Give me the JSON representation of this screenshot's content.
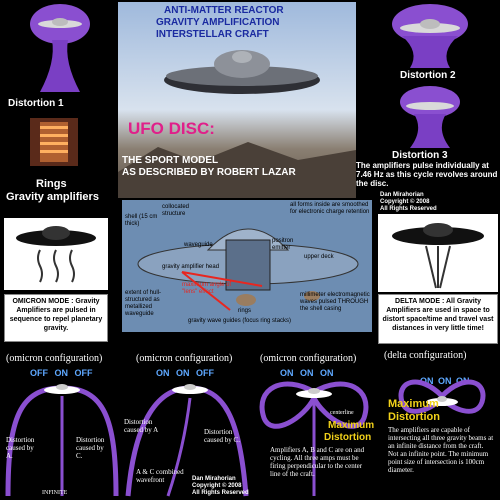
{
  "header": {
    "title_line1": "ANTI-MATTER REACTOR",
    "title_line2": "GRAVITY AMPLIFICATION",
    "title_line3": "INTERSTELLAR CRAFT",
    "ufo_title": "UFO DISC:",
    "sport_line1": "THE SPORT MODEL",
    "sport_line2": "AS DESCRIBED BY ROBERT LAZAR"
  },
  "distortions": {
    "d1": "Distortion 1",
    "d2": "Distortion 2",
    "d3": "Distortion 3",
    "d3_desc": "The amplifiers pulse individually at 7.46 Hz as this cycle revolves around the disc."
  },
  "credit": {
    "line1": "Dan Mirahorian",
    "line2": "Copyright © 2008",
    "line3": "All Rights Reserved"
  },
  "rings": {
    "title_line1": "Rings",
    "title_line2": "Gravity amplifiers"
  },
  "modes": {
    "omicron": "OMICRON MODE : Gravity Amplifiers are pulsed in sequence to repel planetary gravity.",
    "delta": "DELTA MODE : All Gravity Amplifiers are used in space to distort space/time and travel vast distances in very little time!"
  },
  "cutaway": {
    "shell": "shell (15 cm thick)",
    "collocated": "collocated structure",
    "all_forms": "all forms inside are smoothed for electronic charge retention",
    "waveguide": "waveguide",
    "positron": "positron emitter",
    "upper_deck": "upper deck",
    "gravity_head": "gravity amplifier head",
    "max_angle": "maximum angle of \"lens\" effect",
    "rings_label": "rings",
    "extent": "extent of hull-structured as metallized waveguide",
    "guides": "gravity wave guides (focus ring stacks)",
    "millimeter": "millimeter electromagnetic waves pulsed THROUGH the shell casing"
  },
  "configs": {
    "c1_label": "(omicron configuration)",
    "c2_label": "(omicron configuration)",
    "c3_label": "(omicron configuration)",
    "c4_label": "(delta configuration)",
    "c1_off1": "OFF",
    "c1_on": "ON",
    "c1_off2": "OFF",
    "c2_on1": "ON",
    "c2_on2": "ON",
    "c2_off": "OFF",
    "c3_on1": "ON",
    "c3_on2": "ON",
    "c3_on3": "ON",
    "c4_on1": "ON",
    "c4_on2": "ON",
    "c4_on3": "ON",
    "c1_left": "Distortion caused by A.",
    "c1_right": "Distortion caused by C.",
    "c1_infinite": "INFINITE",
    "c2_top": "Distortion caused by A",
    "c2_right": "Distortion caused by C.",
    "c2_combined": "A & C combined wavefront",
    "c3_centerline": "centerline",
    "c3_max1": "Maximum",
    "c3_max2": "Distortion",
    "c3_text": "Amplifiers A, B and C are on and cycling. All three amps must be firing perpendicular to the center line of the craft.",
    "c4_max1": "Maximum",
    "c4_max2": "Distortion",
    "c4_text": "The amplifiers are capable of intersecting all three gravity beams at an infinite distance from the craft. Not an infinite point. The minimum point size of intersection is 100cm diameter."
  },
  "colors": {
    "purple": "#8a4fd0",
    "sky": "#b9cde6",
    "cutaway_bg": "#6d8db2",
    "red": "#e8261f",
    "yellow": "#f2d21a",
    "ontext": "#5ea8ff"
  }
}
